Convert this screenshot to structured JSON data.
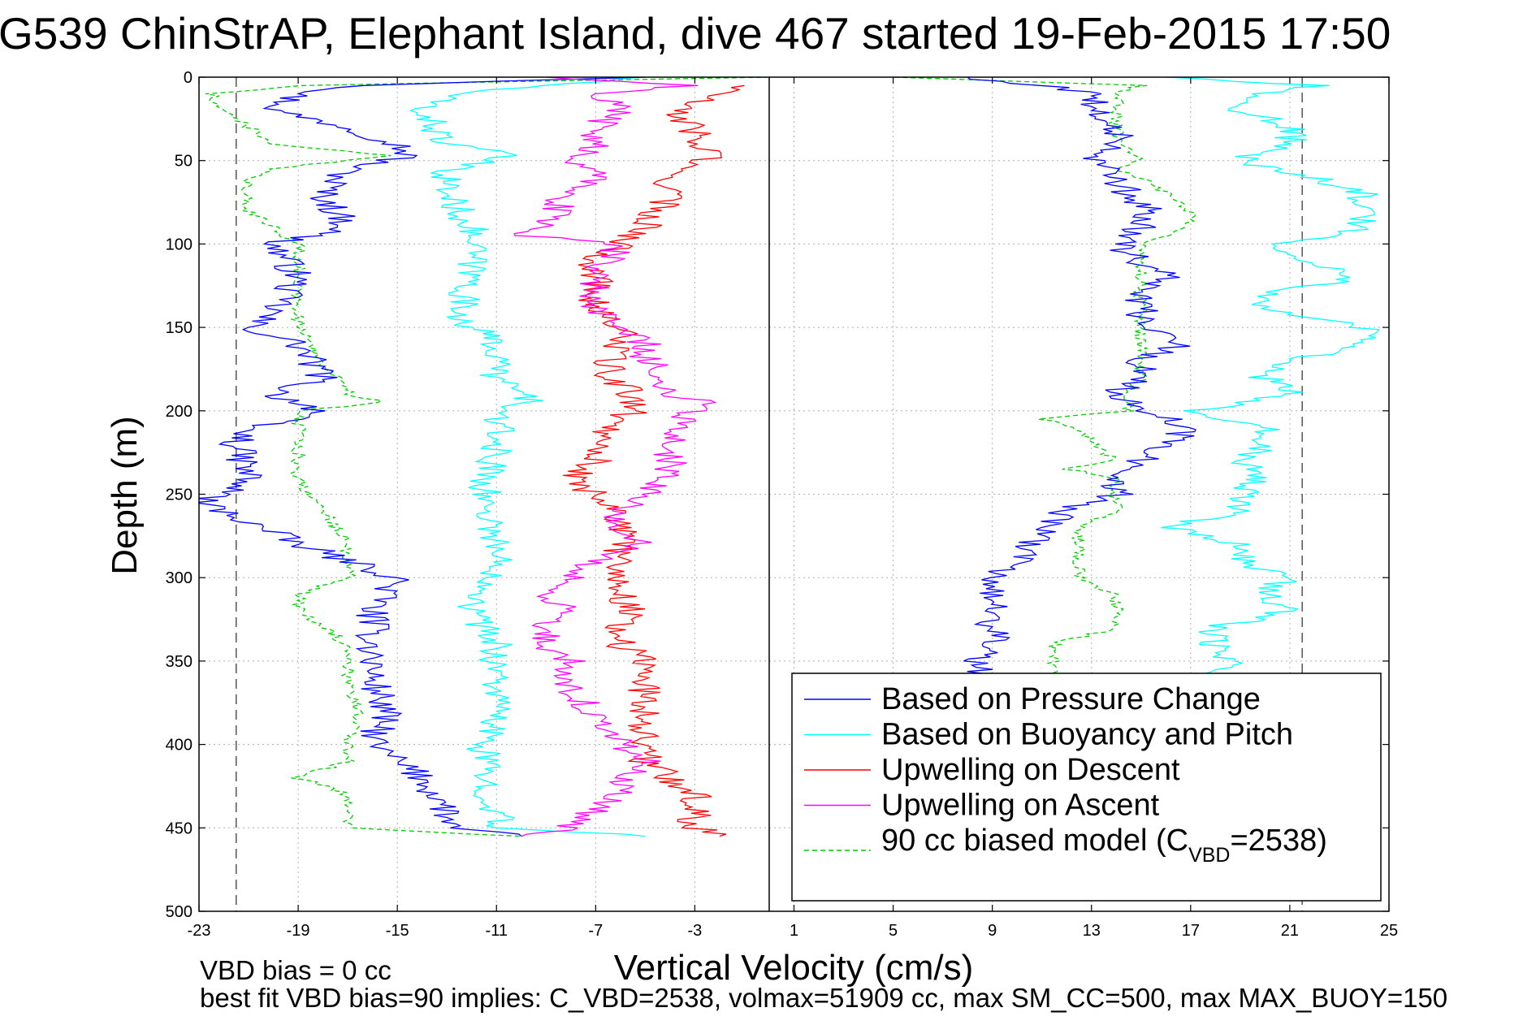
{
  "chart_data": {
    "type": "line",
    "title": "G539 ChinStrAP, Elephant Island, dive 467 started 19-Feb-2015 17:50",
    "xlabel": "Vertical Velocity (cm/s)",
    "ylabel": "Depth (m)",
    "xlim": [
      -23,
      25
    ],
    "ylim": [
      0,
      500
    ],
    "y_reversed": true,
    "grid": true,
    "legend_position": "bottom-right",
    "x_ticks": [
      "-23",
      "-19",
      "-15",
      "-11",
      "-7",
      "-3",
      "1",
      "5",
      "9",
      "13",
      "17",
      "21",
      "25"
    ],
    "y_ticks": [
      "0",
      "50",
      "100",
      "150",
      "200",
      "250",
      "300",
      "350",
      "400",
      "450",
      "500"
    ],
    "x_tick_values": [
      -23,
      -19,
      -15,
      -11,
      -7,
      -3,
      1,
      5,
      9,
      13,
      17,
      21,
      25
    ],
    "y_tick_values": [
      0,
      50,
      100,
      150,
      200,
      250,
      300,
      350,
      400,
      450,
      500
    ],
    "vertical_lines": [
      {
        "x": -21.5,
        "style": "dashed",
        "color": "#555555"
      },
      {
        "x": 0,
        "style": "solid",
        "color": "#000000"
      },
      {
        "x": 21.5,
        "style": "dashed",
        "color": "#555555"
      }
    ],
    "legend": [
      {
        "label": "Based on Pressure Change",
        "color": "#0000ff",
        "dash": "solid"
      },
      {
        "label": "Based on Buoyancy and Pitch",
        "color": "#00ffff",
        "dash": "solid"
      },
      {
        "label": "Upwelling on Descent",
        "color": "#ff0000",
        "dash": "solid"
      },
      {
        "label": "Upwelling on Ascent",
        "color": "#ff00ff",
        "dash": "solid"
      },
      {
        "label_main": "90 cc biased model (C",
        "label_sub": "VBD",
        "label_end": "=2538)",
        "color": "#00cc00",
        "dash": "dashed"
      }
    ],
    "series": [
      {
        "name": "Based on Pressure Change",
        "color": "#0000ff",
        "descent": {
          "depth": [
            0,
            5,
            10,
            20,
            30,
            40,
            47,
            55,
            70,
            90,
            100,
            120,
            140,
            150,
            160,
            180,
            190,
            200,
            210,
            220,
            240,
            250,
            255,
            260,
            280,
            300,
            320,
            340,
            360,
            380,
            400,
            420,
            440,
            450,
            455
          ],
          "x": [
            -5,
            -16,
            -19,
            -20,
            -17,
            -15,
            -14.5,
            -17,
            -18,
            -17,
            -20,
            -19,
            -20,
            -21,
            -19,
            -18,
            -20,
            -18,
            -21,
            -21.5,
            -21,
            -22,
            -23,
            -22,
            -19,
            -15,
            -16,
            -16,
            -16,
            -15.5,
            -16,
            -14,
            -13,
            -13,
            -10
          ]
        },
        "ascent": {
          "depth": [
            455,
            440,
            420,
            400,
            380,
            360,
            350,
            340,
            320,
            300,
            290,
            280,
            270,
            260,
            250,
            240,
            230,
            220,
            210,
            200,
            190,
            180,
            170,
            160,
            150,
            140,
            130,
            120,
            110,
            100,
            90,
            80,
            70,
            60,
            50,
            40,
            30,
            20,
            10,
            5,
            0
          ],
          "x": [
            8,
            8.5,
            8.5,
            8.5,
            8.5,
            8.7,
            8.5,
            9,
            9,
            9,
            10,
            10.5,
            11,
            12,
            14,
            14,
            15,
            16,
            17,
            15,
            14,
            15,
            15,
            16.5,
            15,
            15,
            15,
            16,
            15,
            14,
            15,
            15.5,
            14.5,
            14,
            13,
            14,
            14,
            13,
            13,
            11,
            8
          ]
        }
      },
      {
        "name": "Based on Buoyancy and Pitch",
        "color": "#00ffff",
        "descent": {
          "depth": [
            0,
            10,
            20,
            40,
            47,
            55,
            70,
            90,
            100,
            120,
            140,
            150,
            160,
            180,
            195,
            200,
            220,
            250,
            280,
            300,
            320,
            340,
            360,
            380,
            400,
            420,
            440,
            450,
            455
          ],
          "x": [
            -5,
            -13,
            -14,
            -13,
            -10.5,
            -13,
            -13,
            -12,
            -12,
            -12,
            -12.5,
            -12,
            -11,
            -11,
            -9.5,
            -11,
            -11,
            -11.5,
            -11,
            -11,
            -12,
            -11,
            -11,
            -11,
            -11.5,
            -11.5,
            -11,
            -11,
            -5
          ]
        },
        "ascent": {
          "depth": [
            455,
            440,
            420,
            400,
            380,
            360,
            350,
            340,
            330,
            320,
            310,
            300,
            290,
            280,
            270,
            260,
            250,
            240,
            230,
            220,
            210,
            200,
            190,
            180,
            170,
            160,
            150,
            140,
            130,
            120,
            110,
            100,
            90,
            80,
            70,
            60,
            50,
            40,
            30,
            20,
            10,
            5,
            0
          ],
          "x": [
            8,
            17,
            17,
            17,
            18,
            18,
            18.5,
            18,
            18,
            21,
            20,
            21,
            19,
            19,
            16,
            19,
            19,
            20,
            19,
            20,
            20,
            17,
            21,
            20,
            21,
            24,
            24,
            20,
            20,
            24,
            21,
            21,
            24,
            24,
            24,
            22,
            19,
            21,
            21,
            19,
            20,
            22,
            16
          ]
        }
      },
      {
        "name": "Upwelling on Descent",
        "color": "#ff0000",
        "depth": [
          5,
          10,
          20,
          30,
          40,
          47,
          55,
          70,
          80,
          90,
          100,
          110,
          120,
          130,
          140,
          150,
          160,
          170,
          180,
          190,
          200,
          210,
          220,
          230,
          240,
          250,
          260,
          270,
          280,
          290,
          300,
          310,
          320,
          330,
          340,
          350,
          360,
          370,
          380,
          390,
          400,
          410,
          420,
          430,
          440,
          450,
          455
        ],
        "x": [
          -1,
          -2,
          -4,
          -3,
          -3,
          -2,
          -4,
          -4,
          -4.5,
          -5,
          -6,
          -7,
          -7,
          -7,
          -7,
          -6,
          -6,
          -6.5,
          -6.5,
          -5.5,
          -5.5,
          -6.5,
          -6.5,
          -7,
          -8,
          -7,
          -6,
          -6,
          -6,
          -6,
          -6,
          -6,
          -5.5,
          -6,
          -6,
          -5,
          -5,
          -5,
          -5,
          -5,
          -5,
          -5,
          -4,
          -3,
          -3,
          -3,
          -2
        ]
      },
      {
        "name": "Upwelling on Ascent",
        "color": "#ff00ff",
        "depth": [
          455,
          450,
          440,
          430,
          420,
          410,
          400,
          390,
          380,
          370,
          360,
          350,
          340,
          330,
          320,
          310,
          300,
          290,
          280,
          270,
          260,
          250,
          240,
          230,
          220,
          210,
          200,
          195,
          190,
          180,
          170,
          160,
          150,
          140,
          130,
          120,
          110,
          100,
          95,
          90,
          80,
          70,
          60,
          50,
          40,
          30,
          20,
          10,
          5,
          0
        ],
        "x": [
          -10,
          -8,
          -7,
          -6,
          -6,
          -5,
          -6,
          -7,
          -7,
          -8,
          -8.5,
          -8,
          -9,
          -9,
          -8,
          -9,
          -8,
          -7,
          -5,
          -6,
          -6,
          -5,
          -4,
          -4,
          -4,
          -4,
          -3,
          -2.5,
          -4,
          -4,
          -5,
          -5,
          -6,
          -7,
          -7,
          -7,
          -6.5,
          -6,
          -10,
          -9,
          -8.5,
          -8.5,
          -7,
          -8,
          -7,
          -7,
          -6,
          -7,
          -3,
          -9
        ]
      },
      {
        "name": "90 cc biased model (CVBD=2538)",
        "color": "#00cc00",
        "dash": "dashed",
        "descent": {
          "depth": [
            0,
            5,
            10,
            20,
            30,
            40,
            47,
            55,
            60,
            70,
            80,
            90,
            100,
            120,
            140,
            150,
            170,
            190,
            195,
            200,
            210,
            220,
            240,
            260,
            280,
            300,
            310,
            320,
            330,
            340,
            360,
            380,
            400,
            410,
            420,
            430,
            440,
            450,
            455
          ],
          "x": [
            0,
            -19,
            -22.5,
            -22,
            -21,
            -20,
            -15.5,
            -20,
            -21,
            -21,
            -21,
            -20,
            -19,
            -19,
            -19,
            -19,
            -18,
            -17,
            -15.5,
            -19,
            -19,
            -19,
            -19,
            -18,
            -17,
            -17,
            -19,
            -19,
            -18,
            -17,
            -17,
            -16.5,
            -17,
            -17,
            -19,
            -17,
            -17,
            -17,
            -10
          ]
        },
        "ascent": {
          "depth": [
            455,
            450,
            440,
            430,
            420,
            410,
            400,
            390,
            380,
            370,
            360,
            350,
            340,
            330,
            320,
            310,
            300,
            290,
            280,
            270,
            260,
            250,
            240,
            235,
            230,
            220,
            210,
            205,
            200,
            190,
            180,
            170,
            160,
            150,
            140,
            130,
            120,
            110,
            100,
            90,
            80,
            70,
            60,
            55,
            50,
            40,
            30,
            20,
            10,
            5,
            0
          ],
          "x": [
            8,
            11.5,
            11.5,
            11.5,
            11.5,
            11.5,
            11.5,
            11.5,
            11.5,
            11.5,
            11.5,
            11.5,
            11.5,
            14,
            14,
            14,
            12.5,
            12.5,
            12.5,
            12.5,
            14,
            14,
            14,
            12,
            14,
            13,
            12.5,
            11,
            14.5,
            14.5,
            15,
            15,
            15,
            15,
            15,
            15,
            15,
            15,
            15,
            17,
            17,
            16,
            15,
            14,
            15,
            14,
            14,
            14,
            14,
            15,
            5
          ]
        }
      }
    ]
  },
  "footer": {
    "vbd_bias": "VBD bias = 0 cc",
    "best_fit": "best fit VBD bias=90 implies: C_VBD=2538, volmax=51909 cc, max SM_CC=500, max MAX_BUOY=150"
  }
}
